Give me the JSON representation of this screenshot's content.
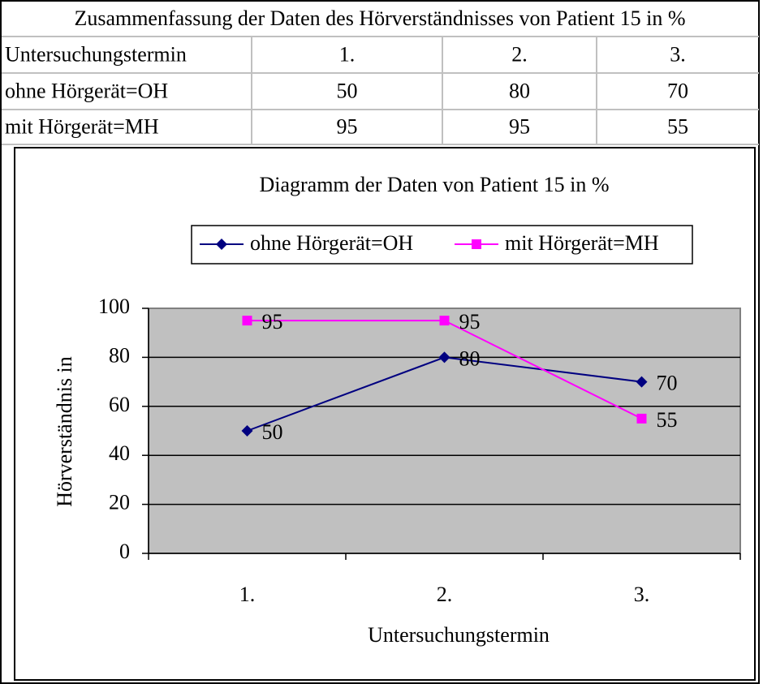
{
  "table": {
    "title": "Zusammenfassung der Daten des Hörverständnisses von Patient 15 in %",
    "rows": [
      [
        "Untersuchungstermin",
        "1.",
        "2.",
        "3."
      ],
      [
        "ohne Hörgerät=OH",
        "50",
        "80",
        "70"
      ],
      [
        "mit Hörgerät=MH",
        "95",
        "95",
        "55"
      ]
    ]
  },
  "chart_data": {
    "type": "line",
    "title": "Diagramm der Daten von Patient 15 in %",
    "x_label": "Untersuchungstermin",
    "y_label": "Hörverständnis in",
    "categories": [
      "1.",
      "2.",
      "3."
    ],
    "series": [
      {
        "name": "ohne Hörgerät=OH",
        "color": "#000080",
        "marker": "diamond",
        "values": [
          50,
          80,
          70
        ]
      },
      {
        "name": "mit Hörgerät=MH",
        "color": "#ff00ff",
        "marker": "square",
        "values": [
          95,
          95,
          55
        ]
      }
    ],
    "ylim": [
      0,
      100
    ],
    "yticks": [
      0,
      20,
      40,
      60,
      80,
      100
    ],
    "grid": true,
    "legend": "top",
    "plot_background": "#c0c0c0"
  }
}
